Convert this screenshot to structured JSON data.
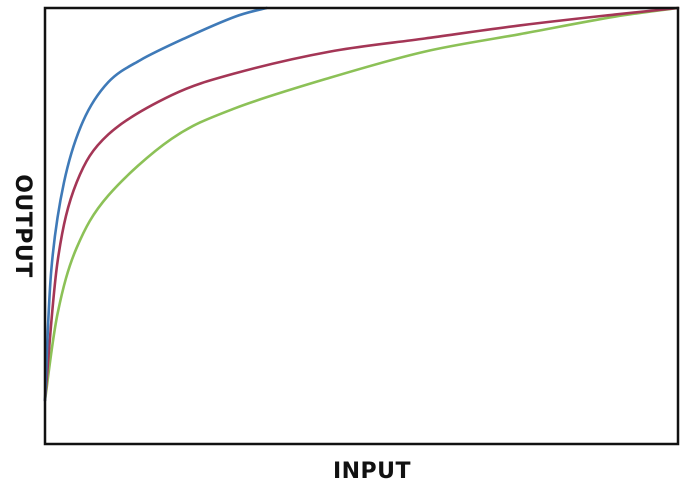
{
  "chart_data": {
    "type": "line",
    "title": "",
    "xlabel": "INPUT",
    "ylabel": "OUTPUT",
    "xlim": [
      0,
      1
    ],
    "ylim": [
      0,
      1
    ],
    "grid": false,
    "ticks": false,
    "series": [
      {
        "color": "#3f7ab8",
        "x": [
          0,
          0.01,
          0.03,
          0.06,
          0.1,
          0.15,
          0.22,
          0.3,
          0.35
        ],
        "y": [
          0.1,
          0.4,
          0.6,
          0.74,
          0.83,
          0.88,
          0.93,
          0.98,
          1.0
        ]
      },
      {
        "color": "#a43656",
        "x": [
          0,
          0.02,
          0.05,
          0.1,
          0.2,
          0.3,
          0.45,
          0.6,
          0.75,
          0.9,
          1.0
        ],
        "y": [
          0.1,
          0.42,
          0.6,
          0.71,
          0.8,
          0.85,
          0.9,
          0.93,
          0.96,
          0.985,
          1.0
        ]
      },
      {
        "color": "#8cc157",
        "x": [
          0,
          0.02,
          0.05,
          0.1,
          0.2,
          0.3,
          0.45,
          0.6,
          0.75,
          0.9,
          1.0
        ],
        "y": [
          0.1,
          0.3,
          0.45,
          0.57,
          0.7,
          0.77,
          0.84,
          0.9,
          0.94,
          0.98,
          1.0
        ]
      }
    ]
  }
}
